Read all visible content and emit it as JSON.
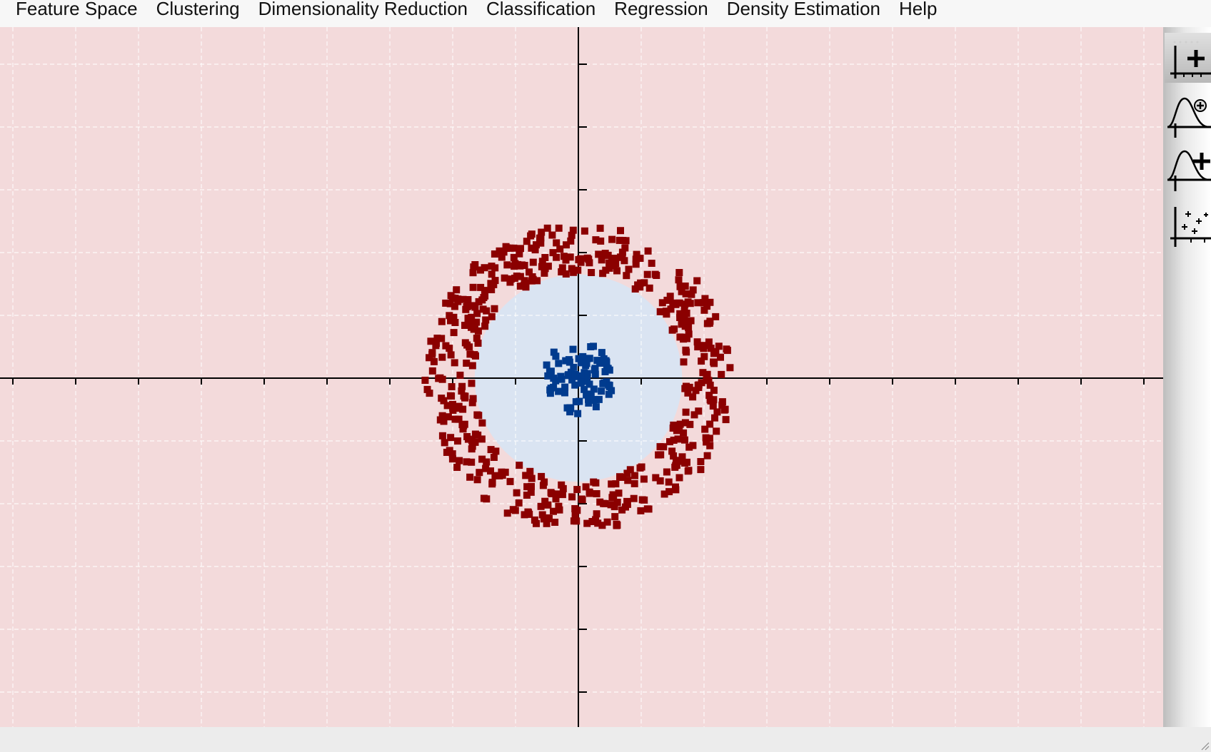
{
  "menu": {
    "items": [
      {
        "label": "Feature Space"
      },
      {
        "label": "Clustering"
      },
      {
        "label": "Dimensionality Reduction"
      },
      {
        "label": "Classification"
      },
      {
        "label": "Regression"
      },
      {
        "label": "Density Estimation"
      },
      {
        "label": "Help"
      }
    ]
  },
  "canvas": {
    "colors": {
      "background": "#f3dadb",
      "inner_region": "#dae4f2",
      "outer_class": "#8b0000",
      "inner_class": "#003b8e",
      "grid": "#ffffff",
      "axes": "#000000"
    },
    "inner_region_radius": 0.83,
    "outer_ring_radius": {
      "min": 0.84,
      "max": 1.23
    },
    "inner_cluster_radius": 0.29,
    "grid": true
  },
  "sidebar": {
    "tools": [
      {
        "icon": "add-samples-icon",
        "active": true
      },
      {
        "icon": "gaussian-remove-icon",
        "active": false
      },
      {
        "icon": "gaussian-add-icon",
        "active": false
      },
      {
        "icon": "scatter-spray-icon",
        "active": false
      }
    ]
  }
}
